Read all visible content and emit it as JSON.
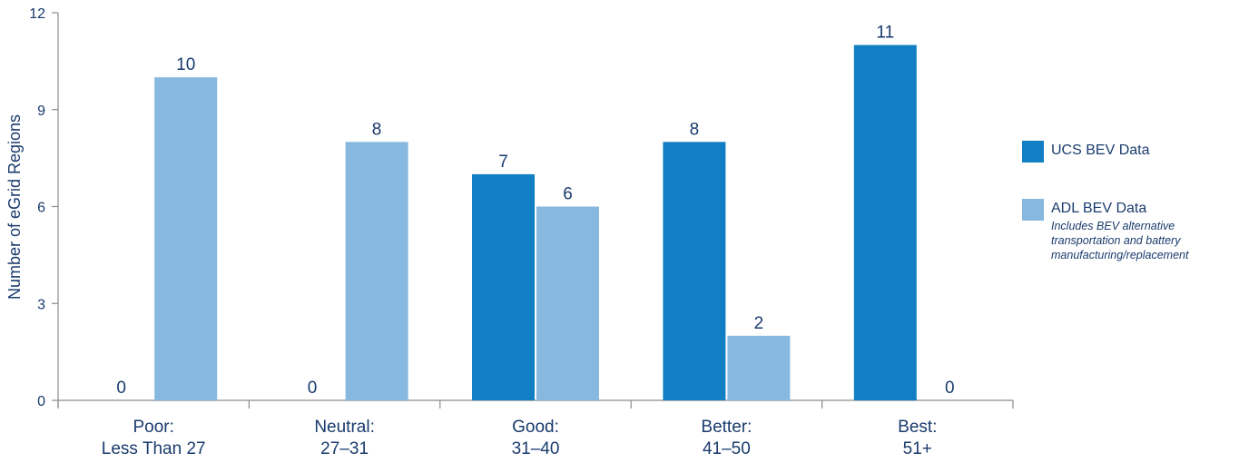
{
  "chart_data": {
    "type": "bar",
    "ylabel": "Number of eGrid Regions",
    "xlabel": "",
    "ylim": [
      0,
      12
    ],
    "yticks": [
      0,
      3,
      6,
      9,
      12
    ],
    "categories": [
      [
        "Poor:",
        "Less Than 27"
      ],
      [
        "Neutral:",
        "27–31"
      ],
      [
        "Good:",
        "31–40"
      ],
      [
        "Better:",
        "41–50"
      ],
      [
        "Best:",
        "51+"
      ]
    ],
    "series": [
      {
        "name": "UCS BEV Data",
        "color": "#127ec3",
        "values": [
          0,
          0,
          7,
          8,
          11
        ]
      },
      {
        "name": "ADL BEV Data",
        "color": "#86b8e0",
        "values": [
          10,
          8,
          6,
          2,
          0
        ],
        "note": "Includes BEV alternative transportation and battery manufacturing/replacement"
      }
    ],
    "legend_position": "right",
    "grid": false
  }
}
